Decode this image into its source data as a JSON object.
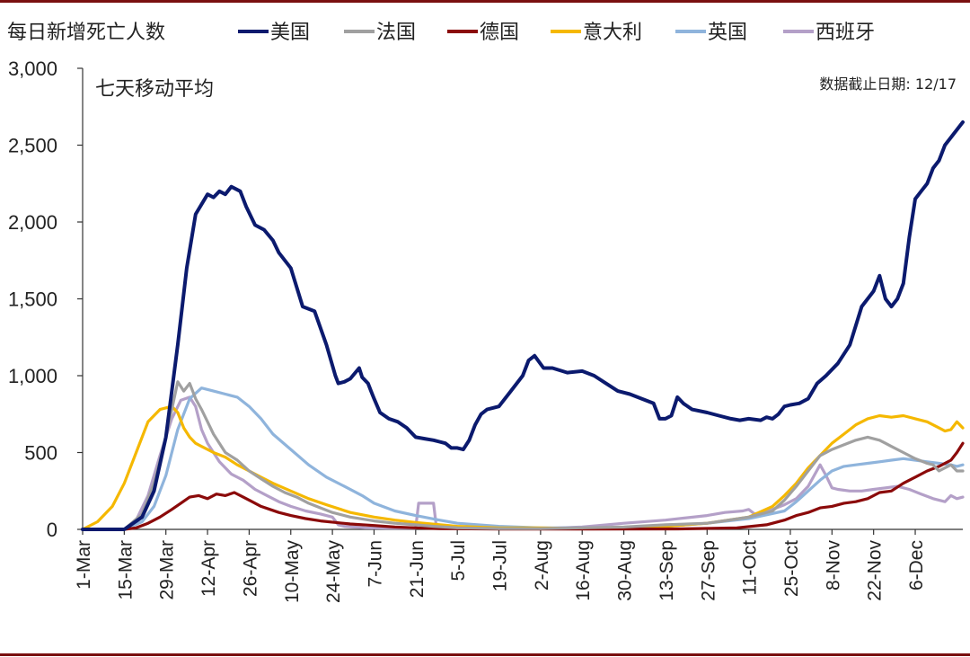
{
  "chart_data": {
    "type": "line",
    "title": "每日新增死亡人数",
    "subtitle": "七天移动平均",
    "annotation": "数据截止日期: 12/17",
    "ylim": [
      0,
      3000
    ],
    "yticks": [
      0,
      500,
      1000,
      1500,
      2000,
      2500,
      3000
    ],
    "ytick_labels": [
      "0",
      "500",
      "1,000",
      "1,500",
      "2,000",
      "2,500",
      "3,000"
    ],
    "x_range": [
      0,
      296
    ],
    "xticks": [
      0,
      14,
      28,
      42,
      56,
      70,
      84,
      98,
      112,
      126,
      140,
      154,
      168,
      182,
      196,
      210,
      224,
      238,
      252,
      266,
      280
    ],
    "xtick_labels": [
      "1-Mar",
      "15-Mar",
      "29-Mar",
      "12-Apr",
      "26-Apr",
      "10-May",
      "24-May",
      "7-Jun",
      "21-Jun",
      "5-Jul",
      "19-Jul",
      "2-Aug",
      "16-Aug",
      "30-Aug",
      "13-Sep",
      "27-Sep",
      "11-Oct",
      "25-Oct",
      "8-Nov",
      "22-Nov",
      "6-Dec"
    ],
    "legend_position": "top",
    "series": [
      {
        "name": "美国",
        "color": "#0b1a6e",
        "x": [
          0,
          14,
          20,
          24,
          28,
          32,
          35,
          38,
          42,
          44,
          46,
          48,
          50,
          53,
          55,
          58,
          61,
          64,
          66,
          70,
          74,
          78,
          82,
          85,
          86,
          88,
          90,
          93,
          94,
          96,
          97,
          98,
          100,
          103,
          106,
          109,
          112,
          115,
          118,
          120,
          122,
          124,
          126,
          128,
          130,
          132,
          134,
          136,
          140,
          144,
          148,
          150,
          152,
          155,
          158,
          163,
          168,
          172,
          176,
          180,
          184,
          188,
          192,
          194,
          196,
          198,
          200,
          202,
          205,
          210,
          214,
          218,
          221,
          224,
          228,
          230,
          232,
          234,
          236,
          238,
          241,
          244,
          247,
          250,
          254,
          258,
          262,
          266,
          268,
          270,
          272,
          274,
          276,
          278,
          280,
          282,
          284,
          286,
          288,
          290,
          292,
          294,
          296
        ],
        "values": [
          0,
          0,
          80,
          250,
          600,
          1200,
          1700,
          2050,
          2180,
          2160,
          2200,
          2180,
          2230,
          2200,
          2100,
          1980,
          1950,
          1880,
          1800,
          1700,
          1450,
          1420,
          1200,
          1000,
          950,
          960,
          980,
          1050,
          990,
          950,
          900,
          850,
          760,
          720,
          700,
          660,
          600,
          590,
          580,
          570,
          560,
          530,
          530,
          520,
          580,
          680,
          750,
          780,
          800,
          900,
          1000,
          1100,
          1130,
          1050,
          1050,
          1020,
          1030,
          1000,
          950,
          900,
          880,
          850,
          820,
          720,
          720,
          740,
          860,
          820,
          780,
          760,
          740,
          720,
          710,
          720,
          710,
          730,
          720,
          750,
          800,
          810,
          820,
          850,
          950,
          1000,
          1080,
          1200,
          1450,
          1550,
          1650,
          1500,
          1450,
          1500,
          1600,
          1900,
          2150,
          2200,
          2250,
          2350,
          2400,
          2500,
          2550,
          2600,
          2650
        ]
      },
      {
        "name": "法国",
        "color": "#a0a0a0",
        "x": [
          0,
          14,
          20,
          24,
          28,
          30,
          32,
          34,
          36,
          38,
          40,
          42,
          44,
          46,
          48,
          52,
          56,
          60,
          64,
          68,
          72,
          76,
          80,
          84,
          90,
          98,
          105,
          112,
          118,
          126,
          140,
          154,
          168,
          182,
          196,
          210,
          224,
          232,
          236,
          240,
          244,
          248,
          252,
          256,
          260,
          264,
          268,
          270,
          272,
          276,
          280,
          284,
          286,
          288,
          290,
          292,
          294,
          296
        ],
        "values": [
          0,
          0,
          100,
          300,
          600,
          780,
          960,
          900,
          950,
          850,
          780,
          700,
          620,
          560,
          500,
          450,
          380,
          330,
          280,
          240,
          210,
          170,
          140,
          110,
          80,
          55,
          40,
          30,
          20,
          10,
          5,
          5,
          10,
          15,
          30,
          40,
          80,
          120,
          190,
          280,
          380,
          480,
          520,
          550,
          580,
          600,
          580,
          560,
          540,
          500,
          460,
          430,
          420,
          380,
          400,
          420,
          380,
          380
        ]
      },
      {
        "name": "德国",
        "color": "#8b0a0a",
        "x": [
          0,
          14,
          18,
          22,
          26,
          30,
          33,
          36,
          39,
          42,
          45,
          48,
          51,
          54,
          57,
          60,
          63,
          66,
          70,
          75,
          80,
          85,
          90,
          98,
          105,
          112,
          120,
          140,
          170,
          200,
          220,
          230,
          236,
          240,
          244,
          248,
          252,
          256,
          260,
          264,
          268,
          272,
          276,
          280,
          284,
          288,
          292,
          294,
          296
        ],
        "values": [
          0,
          0,
          10,
          40,
          80,
          130,
          170,
          210,
          220,
          200,
          230,
          220,
          240,
          210,
          180,
          150,
          130,
          110,
          90,
          70,
          55,
          45,
          35,
          25,
          15,
          10,
          5,
          2,
          2,
          3,
          10,
          30,
          60,
          90,
          110,
          140,
          150,
          170,
          180,
          200,
          240,
          250,
          300,
          340,
          380,
          410,
          450,
          500,
          560
        ]
      },
      {
        "name": "意大利",
        "color": "#f5b800",
        "x": [
          0,
          5,
          10,
          14,
          18,
          22,
          26,
          30,
          32,
          34,
          36,
          38,
          40,
          42,
          44,
          48,
          52,
          56,
          60,
          64,
          70,
          76,
          82,
          90,
          98,
          105,
          112,
          126,
          140,
          154,
          168,
          182,
          196,
          210,
          224,
          232,
          236,
          240,
          244,
          248,
          252,
          256,
          260,
          264,
          268,
          272,
          276,
          280,
          284,
          288,
          290,
          292,
          294,
          296
        ],
        "values": [
          0,
          50,
          150,
          300,
          500,
          700,
          780,
          800,
          760,
          660,
          600,
          560,
          540,
          520,
          500,
          470,
          420,
          380,
          340,
          300,
          250,
          200,
          160,
          110,
          80,
          60,
          45,
          20,
          10,
          10,
          5,
          10,
          20,
          40,
          80,
          150,
          220,
          300,
          400,
          480,
          560,
          620,
          680,
          720,
          740,
          730,
          740,
          720,
          700,
          660,
          640,
          650,
          700,
          660
        ]
      },
      {
        "name": "英国",
        "color": "#8fb4dc",
        "x": [
          0,
          14,
          20,
          24,
          28,
          32,
          36,
          40,
          44,
          48,
          52,
          56,
          60,
          64,
          70,
          76,
          82,
          88,
          94,
          98,
          105,
          112,
          120,
          126,
          140,
          154,
          168,
          182,
          196,
          210,
          224,
          236,
          240,
          244,
          248,
          252,
          256,
          260,
          264,
          268,
          272,
          276,
          280,
          284,
          288,
          292,
          294,
          296
        ],
        "values": [
          0,
          0,
          50,
          150,
          350,
          650,
          850,
          920,
          900,
          880,
          860,
          800,
          720,
          620,
          520,
          420,
          340,
          280,
          220,
          170,
          120,
          90,
          60,
          40,
          20,
          10,
          10,
          10,
          20,
          40,
          70,
          120,
          180,
          250,
          320,
          380,
          410,
          420,
          430,
          440,
          450,
          460,
          450,
          440,
          430,
          420,
          410,
          420
        ]
      },
      {
        "name": "西班牙",
        "color": "#b4a0c8",
        "x": [
          0,
          14,
          18,
          22,
          26,
          30,
          33,
          36,
          38,
          40,
          42,
          44,
          46,
          50,
          54,
          58,
          62,
          66,
          70,
          75,
          80,
          84,
          86,
          88,
          95,
          102,
          108,
          112,
          113,
          118,
          119,
          125,
          140,
          154,
          168,
          182,
          196,
          210,
          216,
          222,
          224,
          226,
          232,
          236,
          240,
          244,
          248,
          250,
          252,
          254,
          258,
          262,
          266,
          270,
          274,
          278,
          282,
          286,
          290,
          292,
          294,
          296
        ],
        "values": [
          0,
          0,
          60,
          220,
          480,
          720,
          840,
          860,
          800,
          650,
          560,
          500,
          440,
          360,
          320,
          260,
          220,
          180,
          150,
          120,
          100,
          80,
          30,
          20,
          10,
          8,
          8,
          8,
          170,
          170,
          10,
          10,
          10,
          5,
          15,
          40,
          60,
          90,
          110,
          120,
          130,
          100,
          130,
          160,
          200,
          280,
          420,
          350,
          270,
          260,
          250,
          250,
          260,
          270,
          280,
          260,
          230,
          200,
          180,
          220,
          200,
          210
        ]
      }
    ]
  }
}
